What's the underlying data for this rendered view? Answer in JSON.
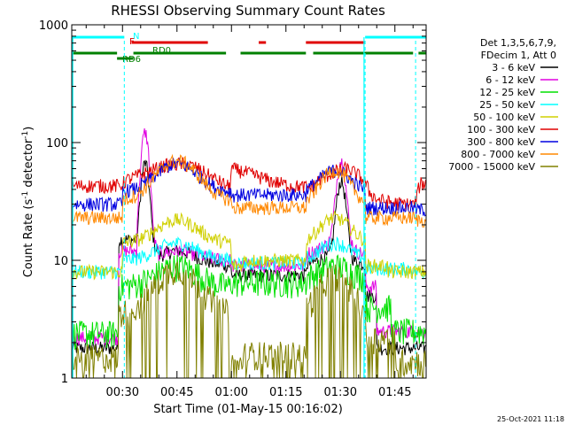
{
  "chart_data": {
    "type": "line",
    "title": "RHESSI Observing Summary Count Rates",
    "xlabel": "Start Time (01-May-15 00:16:02)",
    "ylabel_main": "Count Rate (s",
    "ylabel_sup1": "-1",
    "ylabel_mid": " detector",
    "ylabel_sup2": "-1",
    "ylabel_end": ")",
    "y_scale": "log",
    "ylim": [
      1,
      1000
    ],
    "xlim_minutes": [
      16.03,
      113.6
    ],
    "x_ticks": [
      {
        "label": "00:30",
        "minute": 30
      },
      {
        "label": "00:45",
        "minute": 45
      },
      {
        "label": "01:00",
        "minute": 60
      },
      {
        "label": "01:15",
        "minute": 75
      },
      {
        "label": "01:30",
        "minute": 90
      },
      {
        "label": "01:45",
        "minute": 105
      }
    ],
    "y_ticks": [
      {
        "label": "1",
        "value": 1
      },
      {
        "label": "10",
        "value": 10
      },
      {
        "label": "100",
        "value": 100
      },
      {
        "label": "1000",
        "value": 1000
      }
    ],
    "legend_position": "right",
    "legend_header": [
      "Det 1,3,5,6,7,9,",
      "FDecim 1, Att 0"
    ],
    "series": [
      {
        "name": "3 - 6 keV",
        "color": "#000000"
      },
      {
        "name": "6 - 12 keV",
        "color": "#e000e0"
      },
      {
        "name": "12 - 25 keV",
        "color": "#00e000"
      },
      {
        "name": "25 - 50 keV",
        "color": "#00ffff"
      },
      {
        "name": "50 - 100 keV",
        "color": "#d0d000"
      },
      {
        "name": "100 - 300 keV",
        "color": "#e00000"
      },
      {
        "name": "300 - 800 keV",
        "color": "#0000e0"
      },
      {
        "name": "800 - 7000 keV",
        "color": "#ff8800"
      },
      {
        "name": "7000 - 15000 keV",
        "color": "#808000"
      }
    ],
    "flag_labels": {
      "N": "N",
      "F": "F",
      "RD0": "RD0",
      "RD6": "RD6"
    },
    "flags": {
      "N": {
        "color": "#00ffff",
        "intervals": [
          [
            16.03,
            30.5
          ],
          [
            96.8,
            113.6
          ]
        ]
      },
      "F": {
        "color": "#e00000",
        "intervals": [
          [
            32.5,
            53.5
          ],
          [
            67.5,
            69.5
          ],
          [
            80.5,
            96.8
          ]
        ]
      },
      "RD0": {
        "color": "#008000",
        "intervals": [
          [
            16.03,
            28.5
          ],
          [
            33.0,
            58.5
          ],
          [
            62.5,
            80.5
          ],
          [
            82.5,
            110.0
          ],
          [
            111.5,
            113.6
          ]
        ]
      },
      "RD6": {
        "color": "#008000",
        "intervals": [
          [
            28.5,
            33.0
          ]
        ]
      }
    },
    "night_markers_minutes": [
      30.5,
      96.8,
      110.7
    ],
    "saa_markers_minutes": [
      16.3,
      96.5
    ],
    "profiles": {
      "hard": [
        [
          16.03,
          43
        ],
        [
          29.5,
          43
        ],
        [
          31,
          48
        ],
        [
          34,
          52
        ],
        [
          38,
          58
        ],
        [
          42,
          64
        ],
        [
          46,
          66
        ],
        [
          50,
          62
        ],
        [
          54,
          52
        ],
        [
          58,
          44
        ],
        [
          59.5,
          42
        ],
        [
          60,
          60
        ],
        [
          63,
          57
        ],
        [
          67,
          52
        ],
        [
          71,
          47
        ],
        [
          75,
          44
        ],
        [
          79,
          42
        ],
        [
          82,
          42
        ],
        [
          84,
          48
        ],
        [
          87,
          54
        ],
        [
          91,
          60
        ],
        [
          93,
          58
        ],
        [
          96.5,
          48
        ],
        [
          98,
          38
        ],
        [
          100,
          33
        ],
        [
          104,
          31
        ],
        [
          108,
          30
        ],
        [
          110.5,
          30
        ],
        [
          112,
          45
        ],
        [
          113.6,
          45
        ]
      ]
    },
    "timestamp": "25-Oct-2021 11:18"
  }
}
